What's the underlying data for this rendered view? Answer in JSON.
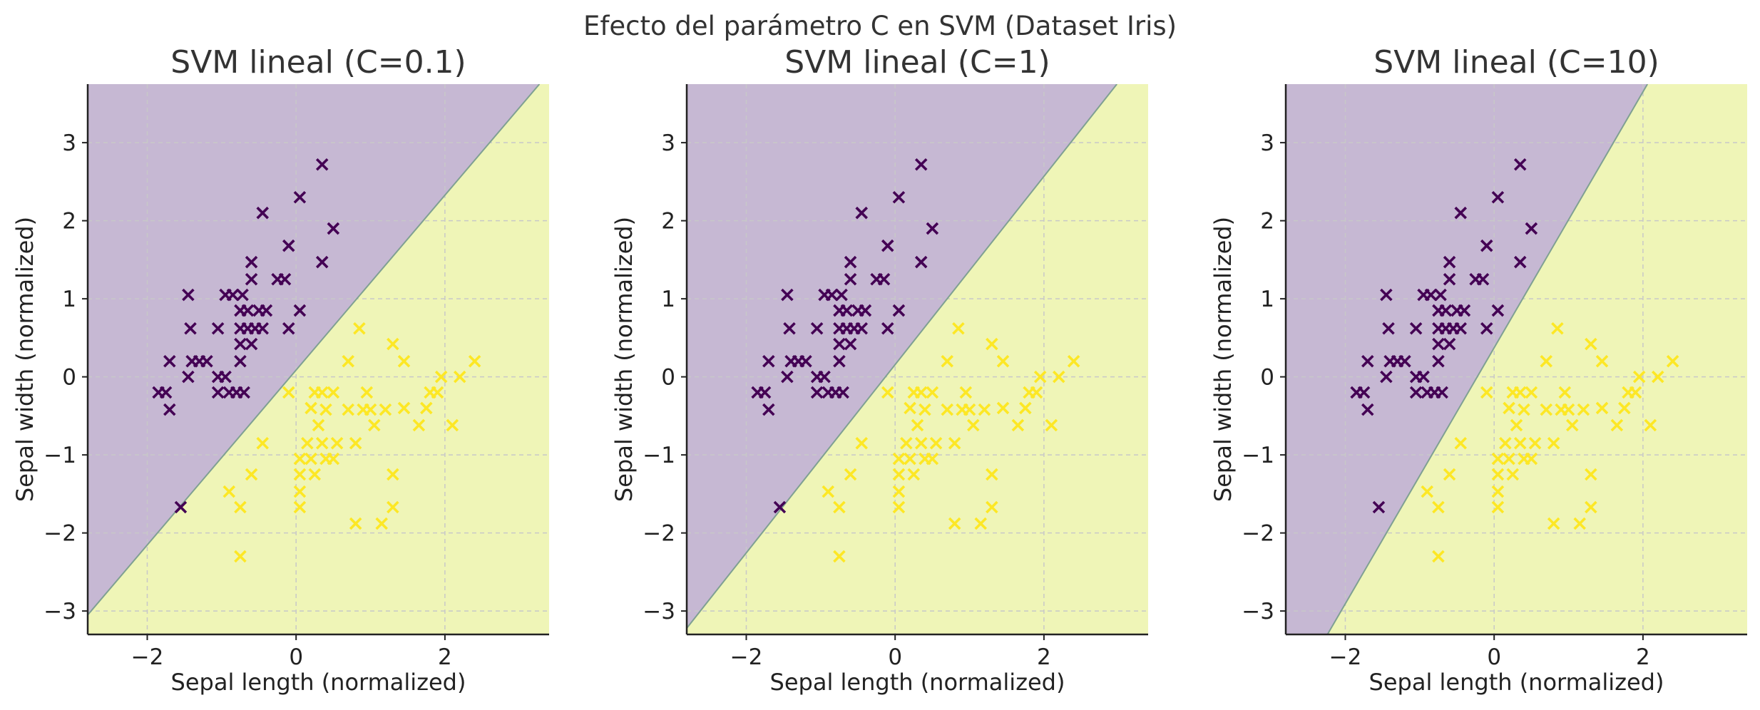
{
  "figure": {
    "suptitle": "Efecto del parámetro C en SVM (Dataset Iris)"
  },
  "colors": {
    "class0_region": "#c6b8d3",
    "class1_region": "#eff5b7",
    "class0_marker": "#440154",
    "class1_marker": "#fde725",
    "boundary": "#7fa092",
    "grid": "#c8c8c8",
    "axis": "#222222"
  },
  "chart_data": [
    {
      "type": "scatter",
      "title": "SVM lineal (C=0.1)",
      "xlabel": "Sepal length (normalized)",
      "ylabel": "Sepal width (normalized)",
      "xlim": [
        -2.8,
        3.4
      ],
      "ylim": [
        -3.3,
        3.75
      ],
      "xticks": [
        "−2",
        "0",
        "2"
      ],
      "yticks": [
        "−3",
        "−2",
        "−1",
        "0",
        "1",
        "2",
        "3"
      ],
      "grid": true,
      "marker": "x",
      "decision_boundary": {
        "x": [
          -2.8,
          3.27
        ],
        "y": [
          -3.05,
          3.75
        ]
      },
      "regions": {
        "above": "class0",
        "below": "class1"
      }
    },
    {
      "type": "scatter",
      "title": "SVM lineal (C=1)",
      "xlabel": "Sepal length (normalized)",
      "ylabel": "Sepal width (normalized)",
      "xlim": [
        -2.8,
        3.4
      ],
      "ylim": [
        -3.3,
        3.75
      ],
      "xticks": [
        "−2",
        "0",
        "2"
      ],
      "yticks": [
        "−3",
        "−2",
        "−1",
        "0",
        "1",
        "2",
        "3"
      ],
      "grid": true,
      "marker": "x",
      "decision_boundary": {
        "x": [
          -2.8,
          2.98
        ],
        "y": [
          -3.22,
          3.75
        ]
      },
      "regions": {
        "above": "class0",
        "below": "class1"
      }
    },
    {
      "type": "scatter",
      "title": "SVM lineal (C=10)",
      "xlabel": "Sepal length (normalized)",
      "ylabel": "Sepal width (normalized)",
      "xlim": [
        -2.8,
        3.4
      ],
      "ylim": [
        -3.3,
        3.75
      ],
      "xticks": [
        "−2",
        "0",
        "2"
      ],
      "yticks": [
        "−3",
        "−2",
        "−1",
        "0",
        "1",
        "2",
        "3"
      ],
      "grid": true,
      "marker": "x",
      "decision_boundary": {
        "x": [
          -2.24,
          2.06
        ],
        "y": [
          -3.3,
          3.75
        ]
      },
      "regions": {
        "above": "class0",
        "below": "class1"
      }
    }
  ],
  "points": {
    "class0": [
      [
        -1.85,
        -0.2
      ],
      [
        -1.75,
        -0.2
      ],
      [
        -1.7,
        -0.42
      ],
      [
        -1.7,
        0.2
      ],
      [
        -1.45,
        0.0
      ],
      [
        -1.45,
        1.05
      ],
      [
        -1.42,
        0.62
      ],
      [
        -1.4,
        0.2
      ],
      [
        -1.3,
        0.2
      ],
      [
        -1.2,
        0.2
      ],
      [
        -1.05,
        0.0
      ],
      [
        -1.05,
        -0.2
      ],
      [
        -1.05,
        0.62
      ],
      [
        -0.95,
        1.05
      ],
      [
        -0.95,
        0.0
      ],
      [
        -0.9,
        -0.2
      ],
      [
        -0.85,
        1.05
      ],
      [
        -0.8,
        -0.2
      ],
      [
        -0.75,
        0.2
      ],
      [
        -0.75,
        0.42
      ],
      [
        -0.75,
        0.62
      ],
      [
        -0.75,
        0.85
      ],
      [
        -0.72,
        1.05
      ],
      [
        -0.7,
        -0.2
      ],
      [
        -0.65,
        0.62
      ],
      [
        -0.65,
        0.85
      ],
      [
        -0.6,
        1.25
      ],
      [
        -0.6,
        1.47
      ],
      [
        -0.6,
        0.42
      ],
      [
        -0.55,
        0.62
      ],
      [
        -0.5,
        0.85
      ],
      [
        -0.45,
        2.1
      ],
      [
        -0.45,
        0.62
      ],
      [
        -0.4,
        0.85
      ],
      [
        -0.25,
        1.25
      ],
      [
        -0.15,
        1.25
      ],
      [
        -0.1,
        1.68
      ],
      [
        -0.1,
        0.62
      ],
      [
        0.05,
        2.3
      ],
      [
        0.05,
        0.85
      ],
      [
        0.35,
        2.72
      ],
      [
        0.35,
        1.47
      ],
      [
        0.5,
        1.9
      ],
      [
        -1.55,
        -1.67
      ]
    ],
    "class1": [
      [
        -0.9,
        -1.47
      ],
      [
        -0.75,
        -2.3
      ],
      [
        -0.75,
        -1.67
      ],
      [
        -0.6,
        -1.25
      ],
      [
        -0.45,
        -0.85
      ],
      [
        -0.1,
        -0.2
      ],
      [
        0.05,
        -1.05
      ],
      [
        0.05,
        -1.25
      ],
      [
        0.05,
        -1.47
      ],
      [
        0.05,
        -1.67
      ],
      [
        0.15,
        -0.85
      ],
      [
        0.2,
        -1.05
      ],
      [
        0.2,
        -0.4
      ],
      [
        0.25,
        -0.2
      ],
      [
        0.25,
        -1.25
      ],
      [
        0.3,
        -0.62
      ],
      [
        0.35,
        -0.2
      ],
      [
        0.35,
        -0.85
      ],
      [
        0.4,
        -1.05
      ],
      [
        0.4,
        -0.42
      ],
      [
        0.5,
        -1.05
      ],
      [
        0.5,
        -0.2
      ],
      [
        0.55,
        -0.85
      ],
      [
        0.7,
        0.2
      ],
      [
        0.7,
        -0.42
      ],
      [
        0.8,
        -0.85
      ],
      [
        0.8,
        -1.88
      ],
      [
        0.85,
        0.62
      ],
      [
        0.9,
        -0.42
      ],
      [
        0.95,
        -0.2
      ],
      [
        1.0,
        -0.42
      ],
      [
        1.05,
        -0.62
      ],
      [
        1.15,
        -1.88
      ],
      [
        1.2,
        -0.42
      ],
      [
        1.3,
        0.42
      ],
      [
        1.3,
        -1.25
      ],
      [
        1.3,
        -1.67
      ],
      [
        1.45,
        0.2
      ],
      [
        1.45,
        -0.4
      ],
      [
        1.65,
        -0.62
      ],
      [
        1.75,
        -0.4
      ],
      [
        1.8,
        -0.2
      ],
      [
        1.9,
        -0.2
      ],
      [
        1.95,
        0.0
      ],
      [
        2.1,
        -0.62
      ],
      [
        2.2,
        0.0
      ],
      [
        2.4,
        0.2
      ]
    ]
  }
}
